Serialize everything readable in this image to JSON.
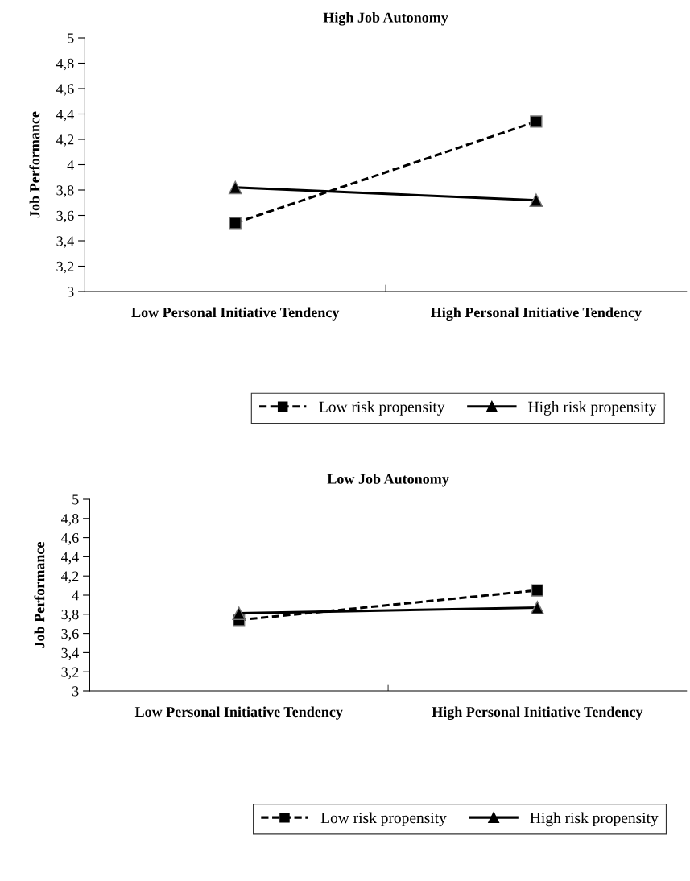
{
  "chart_data": [
    {
      "type": "line",
      "title": "High Job Autonomy",
      "ylabel": "Job Performance",
      "categories": [
        "Low Personal Initiative Tendency",
        "High Personal Initiative Tendency"
      ],
      "series": [
        {
          "name": "Low risk propensity",
          "color": "#000000",
          "values": [
            3.54,
            4.34
          ],
          "marker": "square",
          "line_style": "dashed"
        },
        {
          "name": "High risk propensity",
          "color": "#000000",
          "values": [
            3.82,
            3.72
          ],
          "marker": "triangle",
          "line_style": "solid"
        }
      ],
      "ylim": [
        3,
        5
      ],
      "yticks": [
        3,
        {
          "value": 3.2,
          "label": "3,2"
        },
        {
          "value": 3.4,
          "label": "3,4"
        },
        {
          "value": 3.6,
          "label": "3,6"
        },
        {
          "value": 3.8,
          "label": "3,8"
        },
        4,
        {
          "value": 4.2,
          "label": "4,2"
        },
        {
          "value": 4.4,
          "label": "4,4"
        },
        {
          "value": 4.6,
          "label": "4,6"
        },
        {
          "value": 4.8,
          "label": "4,8"
        },
        5
      ],
      "legend": "bottom",
      "grid": false
    },
    {
      "type": "line",
      "title": "Low Job Autonomy",
      "ylabel": "Job Performance",
      "categories": [
        "Low Personal Initiative Tendency",
        "High Personal Initiative Tendency"
      ],
      "series": [
        {
          "name": "Low risk propensity",
          "color": "#000000",
          "values": [
            3.74,
            4.05
          ],
          "marker": "square",
          "line_style": "dashed"
        },
        {
          "name": "High risk propensity",
          "color": "#000000",
          "values": [
            3.81,
            3.87
          ],
          "marker": "triangle",
          "line_style": "solid"
        }
      ],
      "ylim": [
        3,
        5
      ],
      "yticks": [
        3,
        {
          "value": 3.2,
          "label": "3,2"
        },
        {
          "value": 3.4,
          "label": "3,4"
        },
        {
          "value": 3.6,
          "label": "3,6"
        },
        {
          "value": 3.8,
          "label": "3,8"
        },
        4,
        {
          "value": 4.2,
          "label": "4,2"
        },
        {
          "value": 4.4,
          "label": "4,4"
        },
        {
          "value": 4.6,
          "label": "4,6"
        },
        {
          "value": 4.8,
          "label": "4,8"
        },
        5
      ],
      "legend": "bottom",
      "grid": false
    }
  ]
}
